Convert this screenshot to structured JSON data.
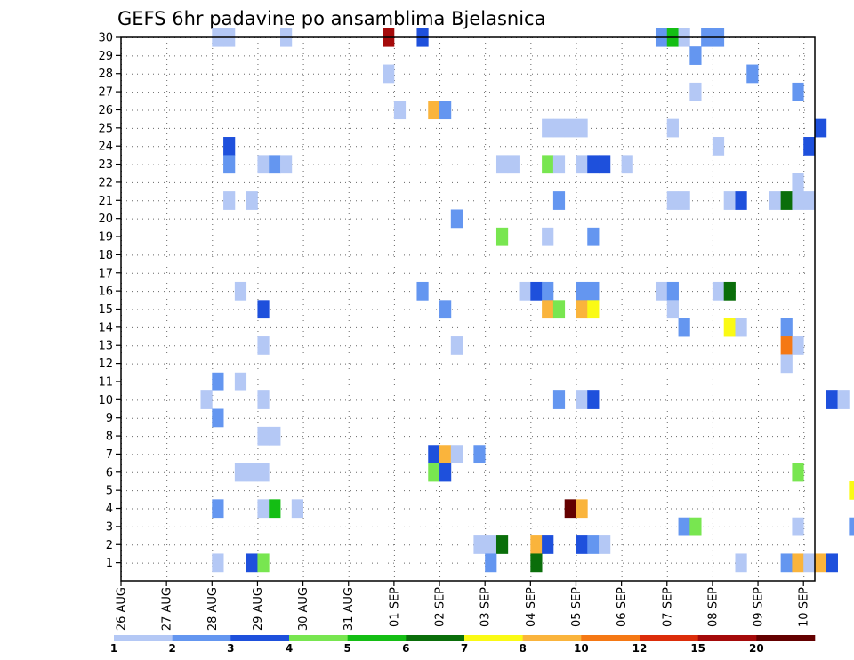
{
  "chart_data": {
    "type": "heatmap",
    "title": "GEFS 6hr padavine po ansamblima Bjelasnica",
    "xlabel": "",
    "ylabel": "",
    "x_ticks": [
      "26 AUG",
      "27 AUG",
      "28 AUG",
      "29 AUG",
      "30 AUG",
      "31 AUG",
      "01 SEP",
      "02 SEP",
      "03 SEP",
      "04 SEP",
      "05 SEP",
      "06 SEP",
      "07 SEP",
      "08 SEP",
      "09 SEP",
      "10 SEP"
    ],
    "x_range_days": [
      0,
      15.25
    ],
    "time_step_hours": 6,
    "y_range": [
      0,
      30
    ],
    "y_ticks": [
      1,
      2,
      3,
      4,
      5,
      6,
      7,
      8,
      9,
      10,
      11,
      12,
      13,
      14,
      15,
      16,
      17,
      18,
      19,
      20,
      21,
      22,
      23,
      24,
      25,
      26,
      27,
      28,
      29,
      30
    ],
    "grid": true,
    "colorbar": {
      "placement": "bottom",
      "labels": [
        "1",
        "2",
        "3",
        "4",
        "5",
        "6",
        "7",
        "8",
        "10",
        "12",
        "15",
        "20"
      ],
      "colors": [
        "#b4c8f5",
        "#6496f0",
        "#1e50dc",
        "#78e650",
        "#14be14",
        "#0a6e0a",
        "#fafa14",
        "#fab43c",
        "#f57814",
        "#dc2d0a",
        "#a50a0a",
        "#640000"
      ]
    },
    "cells_columns": [
      "member",
      "step",
      "class"
    ],
    "cells": [
      [
        30,
        8,
        0
      ],
      [
        30,
        9,
        0
      ],
      [
        30,
        14,
        0
      ],
      [
        30,
        23,
        10
      ],
      [
        30,
        26,
        2
      ],
      [
        30,
        47,
        1
      ],
      [
        30,
        48,
        4
      ],
      [
        30,
        49,
        0
      ],
      [
        30,
        51,
        1
      ],
      [
        30,
        52,
        1
      ],
      [
        29,
        50,
        1
      ],
      [
        28,
        23,
        0
      ],
      [
        28,
        55,
        1
      ],
      [
        28,
        65,
        4
      ],
      [
        28,
        70,
        0
      ],
      [
        28,
        72,
        5
      ],
      [
        28,
        73,
        3
      ],
      [
        28,
        74,
        7
      ],
      [
        28,
        75,
        10
      ],
      [
        28,
        76,
        4
      ],
      [
        28,
        77,
        4
      ],
      [
        27,
        50,
        0
      ],
      [
        27,
        59,
        1
      ],
      [
        27,
        65,
        7
      ],
      [
        27,
        66,
        1
      ],
      [
        27,
        69,
        11
      ],
      [
        27,
        70,
        7
      ],
      [
        27,
        71,
        2
      ],
      [
        26,
        24,
        0
      ],
      [
        26,
        27,
        7
      ],
      [
        26,
        28,
        1
      ],
      [
        26,
        65,
        1
      ],
      [
        26,
        68,
        0
      ],
      [
        26,
        69,
        0
      ],
      [
        26,
        73,
        4
      ],
      [
        26,
        74,
        5
      ],
      [
        26,
        76,
        0
      ],
      [
        26,
        77,
        1
      ],
      [
        25,
        37,
        0
      ],
      [
        25,
        38,
        0
      ],
      [
        25,
        39,
        0
      ],
      [
        25,
        40,
        0
      ],
      [
        25,
        48,
        0
      ],
      [
        25,
        61,
        2
      ],
      [
        25,
        65,
        0
      ],
      [
        25,
        76,
        1
      ],
      [
        25,
        77,
        2
      ],
      [
        24,
        9,
        2
      ],
      [
        24,
        52,
        0
      ],
      [
        24,
        60,
        2
      ],
      [
        24,
        70,
        0
      ],
      [
        24,
        71,
        10
      ],
      [
        24,
        72,
        5
      ],
      [
        24,
        73,
        4
      ],
      [
        24,
        74,
        1
      ],
      [
        24,
        75,
        1
      ],
      [
        24,
        76,
        2
      ],
      [
        23,
        9,
        1
      ],
      [
        23,
        12,
        0
      ],
      [
        23,
        13,
        1
      ],
      [
        23,
        14,
        0
      ],
      [
        23,
        33,
        0
      ],
      [
        23,
        34,
        0
      ],
      [
        23,
        37,
        3
      ],
      [
        23,
        38,
        0
      ],
      [
        23,
        40,
        0
      ],
      [
        23,
        41,
        2
      ],
      [
        23,
        42,
        2
      ],
      [
        23,
        44,
        0
      ],
      [
        22,
        59,
        0
      ],
      [
        22,
        65,
        7
      ],
      [
        22,
        70,
        0
      ],
      [
        21,
        9,
        0
      ],
      [
        21,
        11,
        0
      ],
      [
        21,
        38,
        1
      ],
      [
        21,
        48,
        0
      ],
      [
        21,
        49,
        0
      ],
      [
        21,
        53,
        0
      ],
      [
        21,
        54,
        2
      ],
      [
        21,
        57,
        0
      ],
      [
        21,
        58,
        5
      ],
      [
        21,
        59,
        0
      ],
      [
        21,
        60,
        0
      ],
      [
        21,
        65,
        0
      ],
      [
        20,
        29,
        1
      ],
      [
        19,
        33,
        3
      ],
      [
        19,
        37,
        0
      ],
      [
        19,
        41,
        1
      ],
      [
        19,
        74,
        1
      ],
      [
        18,
        73,
        3
      ],
      [
        18,
        74,
        10
      ],
      [
        18,
        75,
        5
      ],
      [
        18,
        77,
        2
      ],
      [
        18,
        78,
        4
      ],
      [
        18,
        79,
        2
      ],
      [
        16,
        10,
        0
      ],
      [
        16,
        26,
        1
      ],
      [
        16,
        35,
        0
      ],
      [
        16,
        36,
        2
      ],
      [
        16,
        37,
        1
      ],
      [
        16,
        40,
        1
      ],
      [
        16,
        41,
        1
      ],
      [
        16,
        47,
        0
      ],
      [
        16,
        48,
        1
      ],
      [
        16,
        52,
        0
      ],
      [
        16,
        53,
        5
      ],
      [
        16,
        77,
        1
      ],
      [
        16,
        78,
        1
      ],
      [
        15,
        12,
        2
      ],
      [
        15,
        28,
        1
      ],
      [
        15,
        37,
        7
      ],
      [
        15,
        38,
        3
      ],
      [
        15,
        40,
        7
      ],
      [
        15,
        41,
        6
      ],
      [
        15,
        48,
        0
      ],
      [
        14,
        49,
        1
      ],
      [
        14,
        53,
        6
      ],
      [
        14,
        54,
        0
      ],
      [
        14,
        58,
        1
      ],
      [
        14,
        78,
        1
      ],
      [
        13,
        12,
        0
      ],
      [
        13,
        29,
        0
      ],
      [
        13,
        58,
        8
      ],
      [
        13,
        59,
        0
      ],
      [
        12,
        58,
        0
      ],
      [
        11,
        8,
        1
      ],
      [
        11,
        10,
        0
      ],
      [
        10,
        7,
        0
      ],
      [
        10,
        12,
        0
      ],
      [
        10,
        38,
        1
      ],
      [
        10,
        40,
        0
      ],
      [
        10,
        41,
        2
      ],
      [
        10,
        62,
        2
      ],
      [
        10,
        63,
        0
      ],
      [
        10,
        66,
        0
      ],
      [
        10,
        67,
        5
      ],
      [
        10,
        73,
        5
      ],
      [
        10,
        74,
        0
      ],
      [
        10,
        76,
        4
      ],
      [
        10,
        77,
        2
      ],
      [
        9,
        8,
        1
      ],
      [
        9,
        71,
        2
      ],
      [
        9,
        72,
        11
      ],
      [
        9,
        73,
        7
      ],
      [
        9,
        74,
        3
      ],
      [
        9,
        75,
        0
      ],
      [
        8,
        12,
        0
      ],
      [
        8,
        13,
        0
      ],
      [
        7,
        27,
        2
      ],
      [
        7,
        28,
        7
      ],
      [
        7,
        29,
        0
      ],
      [
        7,
        31,
        1
      ],
      [
        6,
        10,
        0
      ],
      [
        6,
        11,
        0
      ],
      [
        6,
        12,
        0
      ],
      [
        6,
        27,
        3
      ],
      [
        6,
        28,
        2
      ],
      [
        6,
        59,
        3
      ],
      [
        6,
        73,
        2
      ],
      [
        6,
        75,
        4
      ],
      [
        6,
        76,
        1
      ],
      [
        5,
        64,
        6
      ],
      [
        5,
        73,
        1
      ],
      [
        5,
        76,
        0
      ],
      [
        4,
        8,
        1
      ],
      [
        4,
        12,
        0
      ],
      [
        4,
        13,
        4
      ],
      [
        4,
        15,
        0
      ],
      [
        4,
        39,
        11
      ],
      [
        4,
        40,
        7
      ],
      [
        4,
        70,
        0
      ],
      [
        3,
        49,
        1
      ],
      [
        3,
        50,
        3
      ],
      [
        3,
        59,
        0
      ],
      [
        3,
        64,
        1
      ],
      [
        3,
        69,
        0
      ],
      [
        3,
        70,
        3
      ],
      [
        2,
        31,
        0
      ],
      [
        2,
        32,
        0
      ],
      [
        2,
        33,
        5
      ],
      [
        2,
        36,
        7
      ],
      [
        2,
        37,
        2
      ],
      [
        2,
        40,
        2
      ],
      [
        2,
        41,
        1
      ],
      [
        2,
        42,
        0
      ],
      [
        2,
        66,
        6
      ],
      [
        2,
        67,
        9
      ],
      [
        2,
        68,
        5
      ],
      [
        2,
        69,
        2
      ],
      [
        1,
        8,
        0
      ],
      [
        1,
        11,
        2
      ],
      [
        1,
        12,
        3
      ],
      [
        1,
        32,
        1
      ],
      [
        1,
        36,
        5
      ],
      [
        1,
        54,
        0
      ],
      [
        1,
        58,
        1
      ],
      [
        1,
        59,
        7
      ],
      [
        1,
        60,
        0
      ],
      [
        1,
        61,
        7
      ],
      [
        1,
        62,
        2
      ],
      [
        1,
        67,
        3
      ],
      [
        1,
        68,
        0
      ],
      [
        1,
        79,
        0
      ]
    ]
  }
}
